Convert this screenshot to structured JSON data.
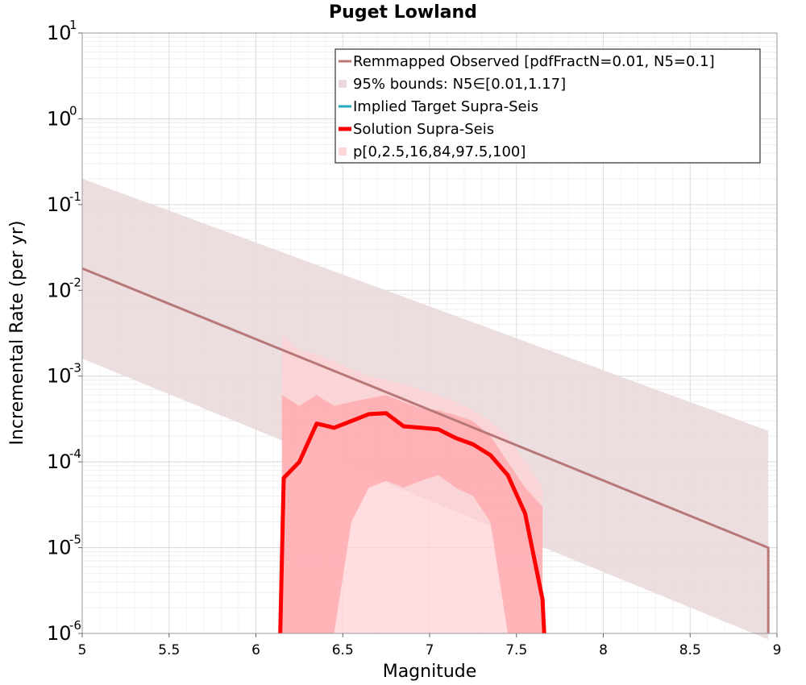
{
  "chart_data": {
    "type": "line",
    "title": "Puget Lowland",
    "xlabel": "Magnitude",
    "ylabel": "Incremental Rate (per yr)",
    "xlim": [
      5,
      9
    ],
    "ylim": [
      1e-06,
      10
    ],
    "yscale": "log",
    "grid": true,
    "x_ticks": [
      "5",
      "5.5",
      "6",
      "6.5",
      "7",
      "7.5",
      "8",
      "8.5",
      "9"
    ],
    "y_ticks": [
      {
        "base": "10",
        "exp": "-6"
      },
      {
        "base": "10",
        "exp": "-5"
      },
      {
        "base": "10",
        "exp": "-4"
      },
      {
        "base": "10",
        "exp": "-3"
      },
      {
        "base": "10",
        "exp": "-2"
      },
      {
        "base": "10",
        "exp": "-1"
      },
      {
        "base": "10",
        "exp": "0"
      },
      {
        "base": "10",
        "exp": "1"
      }
    ],
    "legend": {
      "position": "top-right",
      "entries": [
        {
          "label": "Remmapped Observed [pdfFractN=0.01, N5=0.1]",
          "color": "#b87878",
          "style": "line"
        },
        {
          "label": "95% bounds: N5∈[0.01,1.17]",
          "color": "#ead9da",
          "style": "box"
        },
        {
          "label": "Implied Target Supra-Seis",
          "color": "#22aabb",
          "style": "line"
        },
        {
          "label": "Solution Supra-Seis",
          "color": "#ff0000",
          "style": "thick-line"
        },
        {
          "label": "p[0,2.5,16,84,97.5,100]",
          "color": "#ffd7d9",
          "style": "box"
        }
      ]
    },
    "series": [
      {
        "name": "Remmapped Observed [pdfFractN=0.01, N5=0.1]",
        "color": "#b87878",
        "x": [
          5.0,
          8.95,
          8.95
        ],
        "y": [
          0.018,
          1e-05,
          1e-06
        ]
      },
      {
        "name": "95% bounds: N5∈[0.01,1.17]",
        "color": "#ead9da",
        "type": "band",
        "x": [
          5.0,
          8.95
        ],
        "y_lower": [
          0.0016,
          8.5e-07
        ],
        "y_upper": [
          0.2,
          0.00023
        ]
      },
      {
        "name": "p[0,2.5,16,84,97.5,100]",
        "color": "#ffd7d9",
        "type": "bands",
        "x": [
          6.15,
          6.25,
          6.35,
          6.45,
          6.55,
          6.65,
          6.75,
          6.85,
          6.95,
          7.05,
          7.15,
          7.25,
          7.35,
          7.45,
          7.55,
          7.65
        ],
        "bands": [
          {
            "y_lower": [
              1e-06,
              1e-06,
              1e-06,
              1e-06,
              1e-06,
              1e-06,
              1e-06,
              1e-06,
              1e-06,
              1e-06,
              1e-06,
              1e-06,
              1e-06,
              1e-06,
              1e-06,
              1e-06
            ],
            "y_upper": [
              0.003,
              0.002,
              0.0018,
              0.0015,
              0.0012,
              0.001,
              0.0009,
              0.0008,
              0.0007,
              0.0006,
              0.0005,
              0.0004,
              0.0003,
              0.0002,
              0.0001,
              5e-05
            ]
          },
          {
            "y_lower": [
              1e-06,
              1e-06,
              1e-06,
              1e-06,
              2e-05,
              5e-05,
              6e-05,
              5e-05,
              6e-05,
              7e-05,
              5e-05,
              4e-05,
              2e-05,
              1e-06,
              1e-06,
              1e-06
            ],
            "y_upper": [
              0.0006,
              0.00045,
              0.0006,
              0.00045,
              0.0005,
              0.00055,
              0.0006,
              0.0005,
              0.00042,
              0.0004,
              0.00035,
              0.0003,
              0.0002,
              0.0001,
              5e-05,
              3e-05
            ]
          }
        ]
      },
      {
        "name": "Implied Target Supra-Seis",
        "color": "#22aabb",
        "x": [],
        "y": []
      },
      {
        "name": "Solution Supra-Seis",
        "color": "#ff0000",
        "x": [
          6.14,
          6.16,
          6.25,
          6.35,
          6.45,
          6.55,
          6.65,
          6.75,
          6.85,
          6.95,
          7.05,
          7.15,
          7.25,
          7.35,
          7.45,
          7.55,
          7.65,
          7.66
        ],
        "y": [
          1e-06,
          6.5e-05,
          0.0001,
          0.00028,
          0.00025,
          0.0003,
          0.00036,
          0.00037,
          0.00026,
          0.00025,
          0.00024,
          0.00019,
          0.00016,
          0.00012,
          7e-05,
          2.5e-05,
          2.5e-06,
          1e-06
        ]
      }
    ]
  }
}
